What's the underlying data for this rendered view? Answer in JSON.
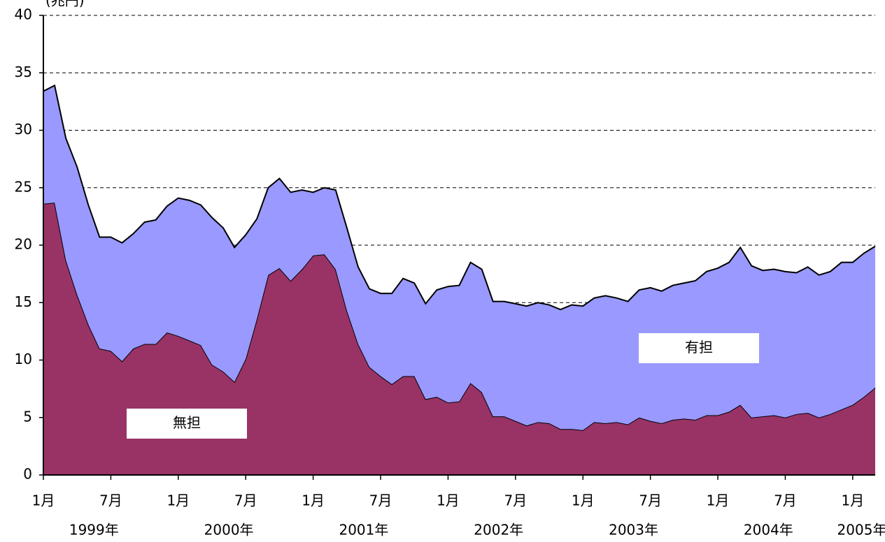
{
  "chart_data": {
    "type": "stacked_area",
    "y_label": "(兆円)",
    "categories": [
      "1月",
      null,
      null,
      null,
      null,
      null,
      "7月",
      null,
      null,
      null,
      null,
      null,
      "1月",
      null,
      null,
      null,
      null,
      null,
      "7月",
      null,
      null,
      null,
      null,
      null,
      "1月",
      null,
      null,
      null,
      null,
      null,
      "7月",
      null,
      null,
      null,
      null,
      null,
      "1月",
      null,
      null,
      null,
      null,
      null,
      "7月",
      null,
      null,
      null,
      null,
      null,
      "1月",
      null,
      null,
      null,
      null,
      null,
      "7月",
      null,
      null,
      null,
      null,
      null,
      "1月",
      null,
      null,
      null,
      null,
      null,
      "7月",
      null,
      null,
      null,
      null,
      null,
      "1月",
      null,
      null
    ],
    "year_labels": [
      "1999年",
      "2000年",
      "2001年",
      "2002年",
      "2003年",
      "2004年",
      "2005年"
    ],
    "series": [
      {
        "name": "無担",
        "color": "#993366",
        "values": [
          23.6,
          23.7,
          18.7,
          15.7,
          13.1,
          11.0,
          10.8,
          9.9,
          11.0,
          11.4,
          11.4,
          12.4,
          12.1,
          11.7,
          11.3,
          9.6,
          9.0,
          8.1,
          10.1,
          13.6,
          17.4,
          18.0,
          16.9,
          17.9,
          19.1,
          19.2,
          17.9,
          14.3,
          11.4,
          9.4,
          8.6,
          7.9,
          8.6,
          8.6,
          6.6,
          6.8,
          6.3,
          6.4,
          8.0,
          7.2,
          5.1,
          5.1,
          4.7,
          4.3,
          4.6,
          4.5,
          4.0,
          4.0,
          3.9,
          4.6,
          4.5,
          4.6,
          4.4,
          5.0,
          4.7,
          4.5,
          4.8,
          4.9,
          4.8,
          5.2,
          5.2,
          5.5,
          6.1,
          5.0,
          5.1,
          5.2,
          5.0,
          5.3,
          5.4,
          5.0,
          5.3,
          5.7,
          6.1,
          6.8,
          7.6
        ]
      },
      {
        "name": "有担",
        "color": "#9999ff",
        "values": [
          9.8,
          10.2,
          10.6,
          11.1,
          10.4,
          9.7,
          9.9,
          10.3,
          10.0,
          10.6,
          10.8,
          11.0,
          12.0,
          12.2,
          12.2,
          12.8,
          12.5,
          11.7,
          10.8,
          8.7,
          7.6,
          7.8,
          7.7,
          6.9,
          5.5,
          5.8,
          6.9,
          7.2,
          6.7,
          6.8,
          7.2,
          7.9,
          8.5,
          8.1,
          8.3,
          9.3,
          10.1,
          10.1,
          10.5,
          10.7,
          10.0,
          10.0,
          10.2,
          10.4,
          10.4,
          10.3,
          10.4,
          10.8,
          10.8,
          10.8,
          11.1,
          10.8,
          10.7,
          11.1,
          11.6,
          11.5,
          11.7,
          11.8,
          12.1,
          12.5,
          12.8,
          13.0,
          13.7,
          13.2,
          12.7,
          12.7,
          12.7,
          12.3,
          12.7,
          12.4,
          12.4,
          12.8,
          12.4,
          12.5,
          12.3
        ]
      }
    ],
    "ylim": [
      0,
      40
    ],
    "yticks": [
      0,
      5,
      10,
      15,
      20,
      25,
      30,
      35,
      40
    ],
    "grid": true
  }
}
